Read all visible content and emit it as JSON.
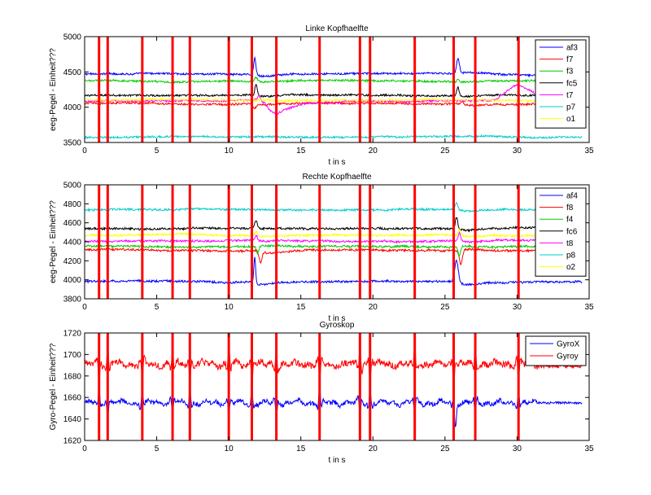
{
  "figure": {
    "background": "#ffffff",
    "marker_color": "#ff0000"
  },
  "markers_x": [
    1.0,
    1.6,
    4.0,
    6.1,
    7.3,
    10.0,
    11.6,
    13.3,
    16.3,
    19.1,
    19.8,
    22.9,
    25.6,
    27.1,
    30.1
  ],
  "chart_data": [
    {
      "type": "line",
      "title": "Linke Kopfhaelfte",
      "xlabel": "t in s",
      "ylabel": "eeg-Pegel - Einheit???",
      "xlim": [
        0,
        35
      ],
      "ylim": [
        3500,
        5000
      ],
      "xticks": [
        "0",
        "5",
        "10",
        "15",
        "20",
        "25",
        "30",
        "35"
      ],
      "yticks": [
        "3500",
        "4000",
        "4500",
        "5000"
      ],
      "grid": false,
      "legend_position": "top-right",
      "x_range": [
        0,
        34.5
      ],
      "series": [
        {
          "name": "af3",
          "color": "#0000ff",
          "base": 4470
        },
        {
          "name": "f7",
          "color": "#ff0000",
          "base": 4050
        },
        {
          "name": "f3",
          "color": "#00cc00",
          "base": 4370
        },
        {
          "name": "fc5",
          "color": "#000000",
          "base": 4170
        },
        {
          "name": "t7",
          "color": "#ff00ff",
          "base": 4090
        },
        {
          "name": "p7",
          "color": "#00cccc",
          "base": 3580
        },
        {
          "name": "o1",
          "color": "#ffff00",
          "base": 4100
        }
      ]
    },
    {
      "type": "line",
      "title": "Rechte Kopfhaelfte",
      "xlabel": "t in s",
      "ylabel": "eeg-Pegel - Einheit???",
      "xlim": [
        0,
        35
      ],
      "ylim": [
        3800,
        5000
      ],
      "xticks": [
        "0",
        "5",
        "10",
        "15",
        "20",
        "25",
        "30",
        "35"
      ],
      "yticks": [
        "3800",
        "4000",
        "4200",
        "4400",
        "4600",
        "4800",
        "5000"
      ],
      "grid": false,
      "legend_position": "top-right",
      "x_range": [
        0,
        34.5
      ],
      "series": [
        {
          "name": "af4",
          "color": "#0000ff",
          "base": 3980
        },
        {
          "name": "f8",
          "color": "#ff0000",
          "base": 4310
        },
        {
          "name": "f4",
          "color": "#00cc00",
          "base": 4350
        },
        {
          "name": "fc6",
          "color": "#000000",
          "base": 4540
        },
        {
          "name": "t8",
          "color": "#ff00ff",
          "base": 4410
        },
        {
          "name": "p8",
          "color": "#00cccc",
          "base": 4740
        },
        {
          "name": "o2",
          "color": "#ffff00",
          "base": 4470
        }
      ]
    },
    {
      "type": "line",
      "title": "Gyroskop",
      "xlabel": "t in s",
      "ylabel": "Gyro-Pegel - Einheit???",
      "xlim": [
        0,
        35
      ],
      "ylim": [
        1620,
        1720
      ],
      "xticks": [
        "0",
        "5",
        "10",
        "15",
        "20",
        "25",
        "30",
        "35"
      ],
      "yticks": [
        "1620",
        "1640",
        "1660",
        "1680",
        "1700",
        "1720"
      ],
      "grid": false,
      "legend_position": "top-right",
      "x_range": [
        0,
        34.5
      ],
      "series": [
        {
          "name": "GyroX",
          "color": "#0000ff",
          "base": 1655
        },
        {
          "name": "Gyroy",
          "color": "#ff0000",
          "base": 1691
        }
      ]
    }
  ]
}
